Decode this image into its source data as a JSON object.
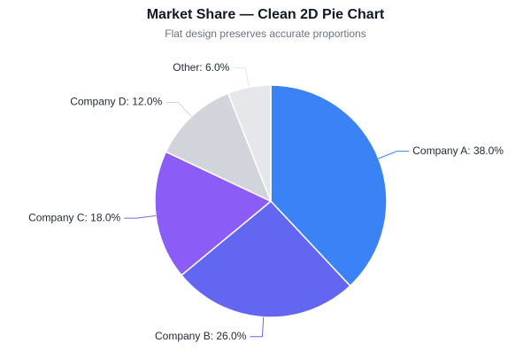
{
  "chart_data": {
    "type": "pie",
    "title": "Market Share — Clean 2D Pie Chart",
    "subtitle": "Flat design preserves accurate proportions",
    "values": [
      38.0,
      26.0,
      18.0,
      12.0,
      6.0
    ],
    "value_labels": [
      "Company A: 38.0%",
      "Company B: 26.0%",
      "Company C: 18.0%",
      "Company D: 12.0%",
      "Other: 6.0%"
    ],
    "colors": [
      "#3b82f6",
      "#6366f1",
      "#8b5cf6",
      "#d1d5db",
      "#e5e7eb"
    ]
  }
}
